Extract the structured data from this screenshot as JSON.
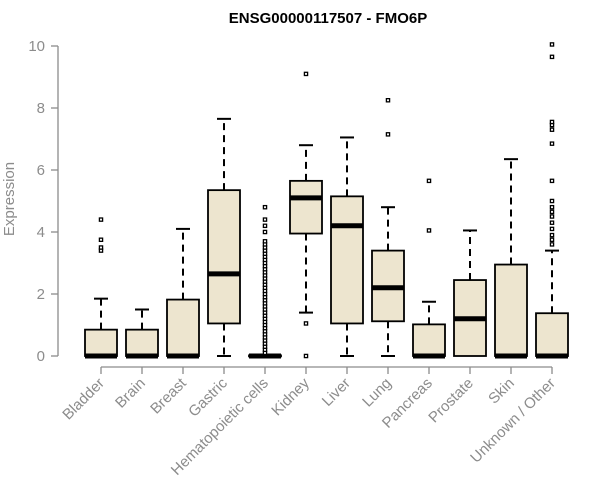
{
  "chart_data": {
    "type": "boxplot",
    "title": "ENSG00000117507 - FMO6P",
    "xlabel": "",
    "ylabel": "Expression",
    "ylim": [
      0,
      10
    ],
    "yticks": [
      0,
      2,
      4,
      6,
      8,
      10
    ],
    "box_fill": "#ede5cf",
    "box_stroke": "#000000",
    "categories": [
      "Bladder",
      "Brain",
      "Breast",
      "Gastric",
      "Hematopoietic cells",
      "Kidney",
      "Liver",
      "Lung",
      "Pancreas",
      "Prostate",
      "Skin",
      "Unknown / Other"
    ],
    "boxes": [
      {
        "q1": 0,
        "median": 0,
        "q3": 0.85,
        "whisker_low": 0,
        "whisker_high": 1.85,
        "outliers": [
          3.4,
          3.5,
          3.75,
          4.4
        ]
      },
      {
        "q1": 0,
        "median": 0,
        "q3": 0.85,
        "whisker_low": 0,
        "whisker_high": 1.5,
        "outliers": []
      },
      {
        "q1": 0,
        "median": 0,
        "q3": 1.82,
        "whisker_low": 0,
        "whisker_high": 4.1,
        "outliers": []
      },
      {
        "q1": 1.05,
        "median": 2.65,
        "q3": 5.35,
        "whisker_low": 0,
        "whisker_high": 7.65,
        "outliers": []
      },
      {
        "q1": 0,
        "median": 0,
        "q3": 0.02,
        "whisker_low": 0,
        "whisker_high": 0.02,
        "outliers": [
          0.1,
          0.2,
          0.3,
          0.4,
          0.5,
          0.6,
          0.7,
          0.8,
          0.9,
          1.0,
          1.1,
          1.2,
          1.3,
          1.4,
          1.5,
          1.6,
          1.7,
          1.8,
          1.9,
          2.0,
          2.1,
          2.2,
          2.3,
          2.4,
          2.5,
          2.6,
          2.7,
          2.8,
          2.9,
          3.0,
          3.1,
          3.2,
          3.3,
          3.4,
          3.5,
          3.6,
          3.7,
          4.0,
          4.2,
          4.4,
          4.8
        ]
      },
      {
        "q1": 3.95,
        "median": 5.1,
        "q3": 5.65,
        "whisker_low": 1.4,
        "whisker_high": 6.8,
        "outliers": [
          0,
          1.05,
          9.1
        ]
      },
      {
        "q1": 1.05,
        "median": 4.2,
        "q3": 5.15,
        "whisker_low": 0,
        "whisker_high": 7.05,
        "outliers": []
      },
      {
        "q1": 1.12,
        "median": 2.2,
        "q3": 3.4,
        "whisker_low": 0,
        "whisker_high": 4.8,
        "outliers": [
          7.15,
          8.25
        ]
      },
      {
        "q1": 0,
        "median": 0,
        "q3": 1.02,
        "whisker_low": 0,
        "whisker_high": 1.75,
        "outliers": [
          4.05,
          5.65
        ]
      },
      {
        "q1": 0,
        "median": 1.2,
        "q3": 2.45,
        "whisker_low": 0,
        "whisker_high": 4.05,
        "outliers": []
      },
      {
        "q1": 0,
        "median": 0,
        "q3": 2.95,
        "whisker_low": 0,
        "whisker_high": 6.35,
        "outliers": []
      },
      {
        "q1": 0,
        "median": 0,
        "q3": 1.38,
        "whisker_low": 0,
        "whisker_high": 3.4,
        "outliers": [
          3.6,
          3.75,
          3.9,
          4.1,
          4.3,
          4.5,
          4.65,
          4.8,
          5.0,
          5.65,
          6.85,
          7.3,
          7.45,
          7.55,
          9.65,
          10.05
        ]
      }
    ]
  }
}
